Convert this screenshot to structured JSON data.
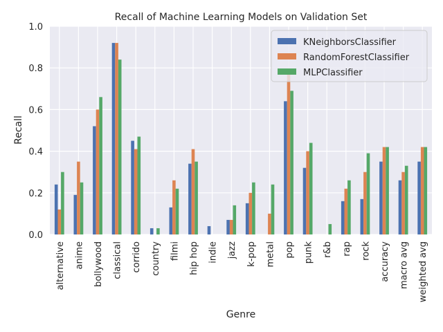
{
  "chart_data": {
    "type": "bar",
    "title": "Recall of Machine Learning Models on Validation Set",
    "xlabel": "Genre",
    "ylabel": "Recall",
    "ylim": [
      0,
      1.0
    ],
    "yticks": [
      "0.0",
      "0.2",
      "0.4",
      "0.6",
      "0.8",
      "1.0"
    ],
    "grid": true,
    "background": "#eaeaf2",
    "legend_position": "top-right",
    "categories": [
      "alternative",
      "anime",
      "bollywood",
      "classical",
      "corrido",
      "country",
      "filmi",
      "hip hop",
      "indie",
      "jazz",
      "k-pop",
      "metal",
      "pop",
      "punk",
      "r&b",
      "rap",
      "rock",
      "accuracy",
      "macro avg",
      "weighted avg"
    ],
    "series": [
      {
        "name": "KNeighborsClassifier",
        "color": "#4c72b0",
        "values": [
          0.24,
          0.19,
          0.52,
          0.92,
          0.45,
          0.03,
          0.13,
          0.34,
          0.04,
          0.07,
          0.15,
          0.0,
          0.64,
          0.32,
          0.0,
          0.16,
          0.17,
          0.35,
          0.26,
          0.35
        ]
      },
      {
        "name": "RandomForestClassifier",
        "color": "#dd8452",
        "values": [
          0.12,
          0.35,
          0.6,
          0.92,
          0.41,
          0.0,
          0.26,
          0.41,
          0.0,
          0.07,
          0.2,
          0.1,
          0.77,
          0.4,
          0.0,
          0.22,
          0.3,
          0.42,
          0.3,
          0.42
        ]
      },
      {
        "name": "MLPClassifier",
        "color": "#55a868",
        "values": [
          0.3,
          0.25,
          0.66,
          0.84,
          0.47,
          0.03,
          0.22,
          0.35,
          0.0,
          0.14,
          0.25,
          0.24,
          0.69,
          0.44,
          0.05,
          0.26,
          0.39,
          0.42,
          0.33,
          0.42
        ]
      }
    ]
  }
}
